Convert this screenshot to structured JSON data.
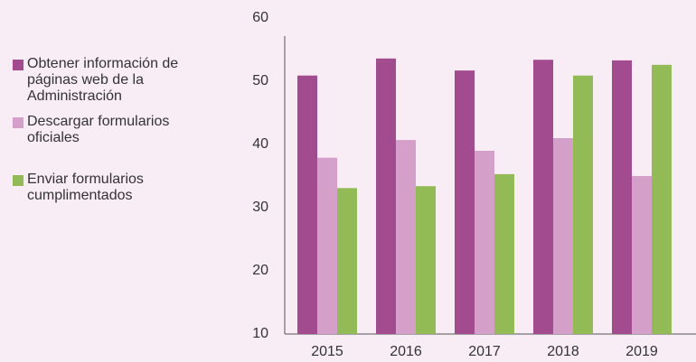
{
  "chart_data": {
    "type": "bar",
    "categories": [
      "2015",
      "2016",
      "2017",
      "2018",
      "2019"
    ],
    "series": [
      {
        "name": "Obtener información de páginas web de la Administración",
        "color": "#a34b8f",
        "values": [
          50.9,
          53.6,
          51.7,
          53.4,
          53.3
        ]
      },
      {
        "name": "Descargar formularios oficiales",
        "color": "#d49fc8",
        "values": [
          37.9,
          40.7,
          39.0,
          41.0,
          35.0
        ]
      },
      {
        "name": "Enviar formularios cumplimentados",
        "color": "#93bb55",
        "values": [
          33.1,
          33.4,
          35.3,
          50.9,
          52.6
        ]
      }
    ],
    "ylim": [
      10,
      60
    ],
    "yticks": [
      10,
      20,
      30,
      40,
      50,
      60
    ],
    "legend": "left"
  }
}
